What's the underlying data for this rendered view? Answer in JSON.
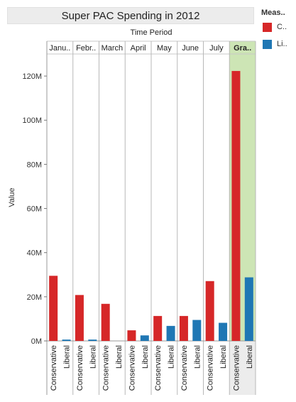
{
  "chart_data": {
    "type": "bar",
    "title": "Super PAC Spending in 2012",
    "column_header_title": "Time Period",
    "ylabel": "Value",
    "ylim": [
      0,
      130000000
    ],
    "yticks": [
      {
        "value": 0,
        "label": "0M"
      },
      {
        "value": 20000000,
        "label": "20M"
      },
      {
        "value": 40000000,
        "label": "40M"
      },
      {
        "value": 60000000,
        "label": "60M"
      },
      {
        "value": 80000000,
        "label": "80M"
      },
      {
        "value": 100000000,
        "label": "100M"
      },
      {
        "value": 120000000,
        "label": "120M"
      }
    ],
    "periods": [
      "Janu..",
      "Febr..",
      "March",
      "April",
      "May",
      "June",
      "July",
      "Gra.."
    ],
    "highlighted_period": "Gra..",
    "highlight_color": "#cde5b5",
    "sub_categories": [
      "Conservative",
      "Liberal"
    ],
    "series": [
      {
        "name": "C..",
        "color": "#d62728",
        "values": [
          29500000,
          20800000,
          16800000,
          4800000,
          11300000,
          11300000,
          27100000,
          122300000
        ]
      },
      {
        "name": "Li..",
        "color": "#1f77b4",
        "values": [
          600000,
          600000,
          0,
          2500000,
          6800000,
          9500000,
          8200000,
          28800000
        ]
      }
    ],
    "legend_title": "Meas..",
    "legend_position": "right"
  }
}
